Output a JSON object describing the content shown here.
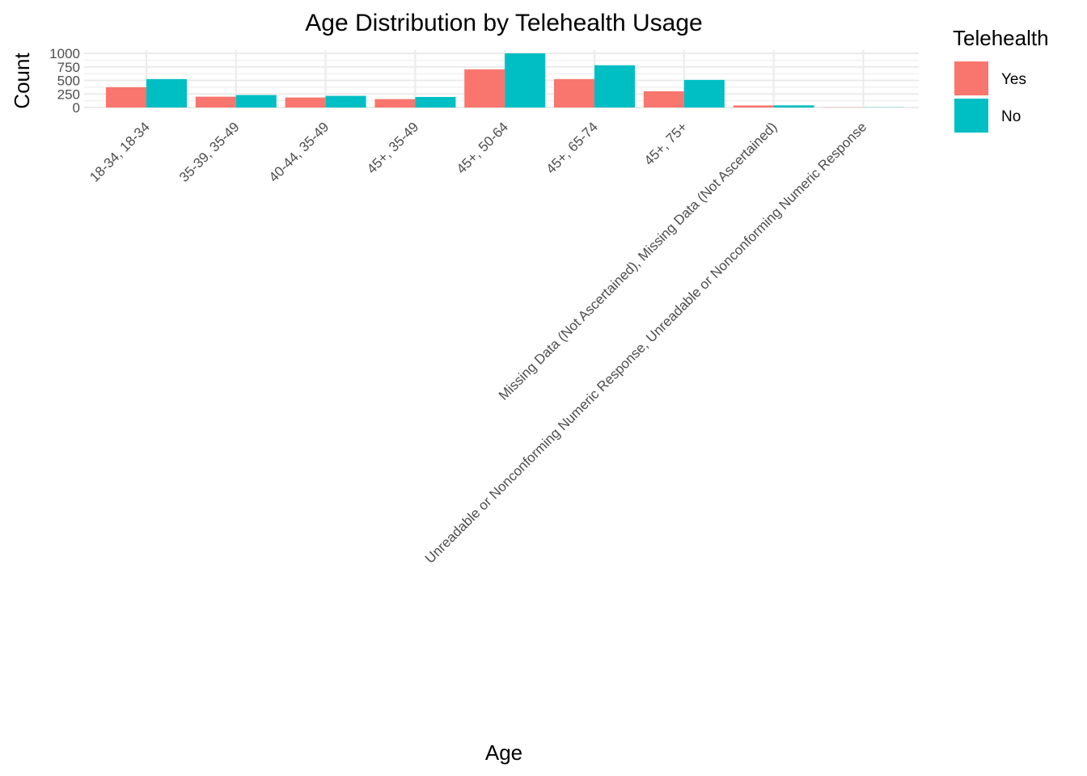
{
  "chart_data": {
    "type": "bar",
    "title": "Age Distribution by Telehealth Usage",
    "xlabel": "Age",
    "ylabel": "Count",
    "ylim": [
      0,
      1000
    ],
    "yticks": [
      0,
      250,
      500,
      750,
      1000
    ],
    "grid": true,
    "legend": {
      "title": "Telehealth",
      "placement": "right"
    },
    "categories": [
      "18-34, 18-34",
      "35-39, 35-49",
      "40-44, 35-49",
      "45+, 35-49",
      "45+, 50-64",
      "45+, 65-74",
      "45+, 75+",
      "Missing Data (Not Ascertained), Missing Data (Not Ascertained)",
      "Unreadable or Nonconforming Numeric Response, Unreadable or Nonconforming Numeric Response"
    ],
    "series": [
      {
        "name": "Yes",
        "color": "#F8766D",
        "values": [
          375,
          200,
          185,
          155,
          705,
          525,
          300,
          38,
          3
        ]
      },
      {
        "name": "No",
        "color": "#00BFC4",
        "values": [
          525,
          230,
          215,
          195,
          1000,
          780,
          510,
          40,
          3
        ]
      }
    ]
  }
}
